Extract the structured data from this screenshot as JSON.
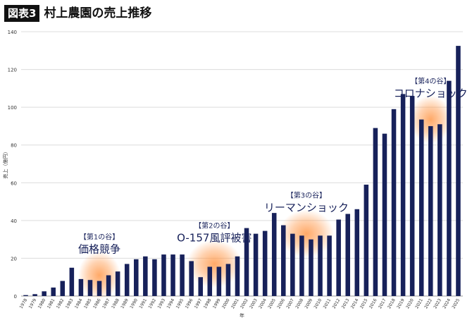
{
  "header": {
    "badge": "図表3",
    "title": "村上農園の売上推移"
  },
  "colors": {
    "bar": "#17215a",
    "grid": "#dcdcdc",
    "highlight": "#ff9a4d"
  },
  "annotations": [
    {
      "bracket": "【第1の谷】",
      "label": "価格競争",
      "years": [
        "1985",
        "1986",
        "1987"
      ]
    },
    {
      "bracket": "【第2の谷】",
      "label": "O-157風評被害",
      "years": [
        "1997",
        "1998",
        "1999",
        "2000"
      ]
    },
    {
      "bracket": "【第3の谷】",
      "label": "リーマンショック",
      "years": [
        "2007",
        "2008",
        "2009",
        "2010"
      ]
    },
    {
      "bracket": "【第4の谷】",
      "label": "コロナショック",
      "years": [
        "2021",
        "2022",
        "2023"
      ]
    }
  ],
  "chart_data": {
    "type": "bar",
    "title": "村上農園の売上推移",
    "xlabel": "年",
    "ylabel": "売上（億円）",
    "ylim": [
      0,
      140
    ],
    "yticks": [
      0,
      20,
      40,
      60,
      80,
      100,
      120,
      140
    ],
    "grid": true,
    "categories": [
      "1978",
      "1979",
      "1980",
      "1981",
      "1982",
      "1983",
      "1984",
      "1985",
      "1986",
      "1987",
      "1988",
      "1989",
      "1990",
      "1991",
      "1992",
      "1993",
      "1994",
      "1995",
      "1996",
      "1997",
      "1998",
      "1999",
      "2000",
      "2001",
      "2002",
      "2003",
      "2004",
      "2005",
      "2006",
      "2007",
      "2008",
      "2009",
      "2010",
      "2011",
      "2012",
      "2013",
      "2014",
      "2015",
      "2016",
      "2017",
      "2018",
      "2019",
      "2020",
      "2021",
      "2022",
      "2023",
      "2024",
      "2025"
    ],
    "values": [
      0.5,
      1,
      2.5,
      4.5,
      8,
      15,
      9,
      8.5,
      8,
      11,
      13,
      17,
      19.5,
      21,
      19.5,
      22,
      22,
      22,
      18.5,
      10,
      15.5,
      15.5,
      17,
      21,
      36,
      33,
      34.5,
      44,
      37.5,
      33,
      32,
      30,
      32,
      32,
      40.5,
      43.5,
      46,
      59,
      89,
      86,
      99,
      107,
      106,
      93.5,
      90,
      91,
      114,
      132.5
    ]
  }
}
